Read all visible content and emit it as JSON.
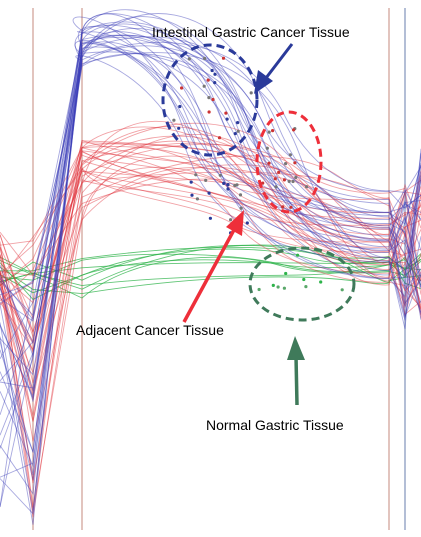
{
  "chart_data": {
    "type": "line",
    "title": "",
    "xlabel": "",
    "ylabel": "",
    "grid": false,
    "annotations": [
      {
        "text": "Intestinal Gastric Cancer Tissue",
        "color": "#2a3a9a"
      },
      {
        "text": "Adjacent Cancer Tissue",
        "color": "#ee2f3a"
      },
      {
        "text": "Normal Gastric Tissue",
        "color": "#3f7a5a"
      }
    ],
    "series": [
      {
        "group": "intestinal",
        "color": "#3b3fb8",
        "count": 30
      },
      {
        "group": "adjacent",
        "color": "#e0303a",
        "count": 32
      },
      {
        "group": "normal",
        "color": "#2db34a",
        "count": 10
      }
    ]
  }
}
